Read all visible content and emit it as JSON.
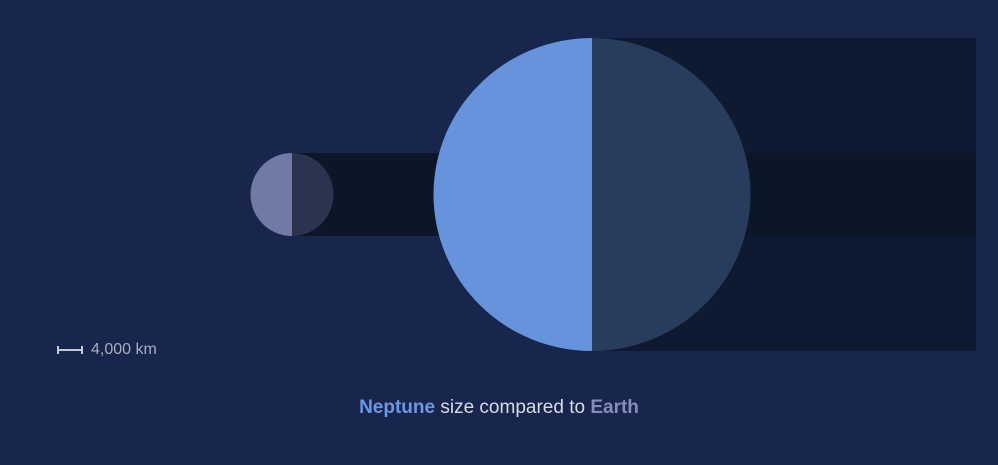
{
  "colors": {
    "background": "#18264d",
    "neptune_lit": "#6792dc",
    "neptune_dark": "#283c5d",
    "earth_lit": "#717aa4",
    "earth_dark": "#2b344f",
    "shadow": "#0d1a31",
    "caption_text": "#d7dbe5"
  },
  "scale_bar": {
    "label": "4,000 km"
  },
  "caption": {
    "planet_a": "Neptune",
    "middle": " size compared to ",
    "planet_b": "Earth"
  },
  "planets": {
    "neptune": {
      "name": "Neptune",
      "diameter_km": 49528
    },
    "earth": {
      "name": "Earth",
      "diameter_km": 12742
    }
  }
}
